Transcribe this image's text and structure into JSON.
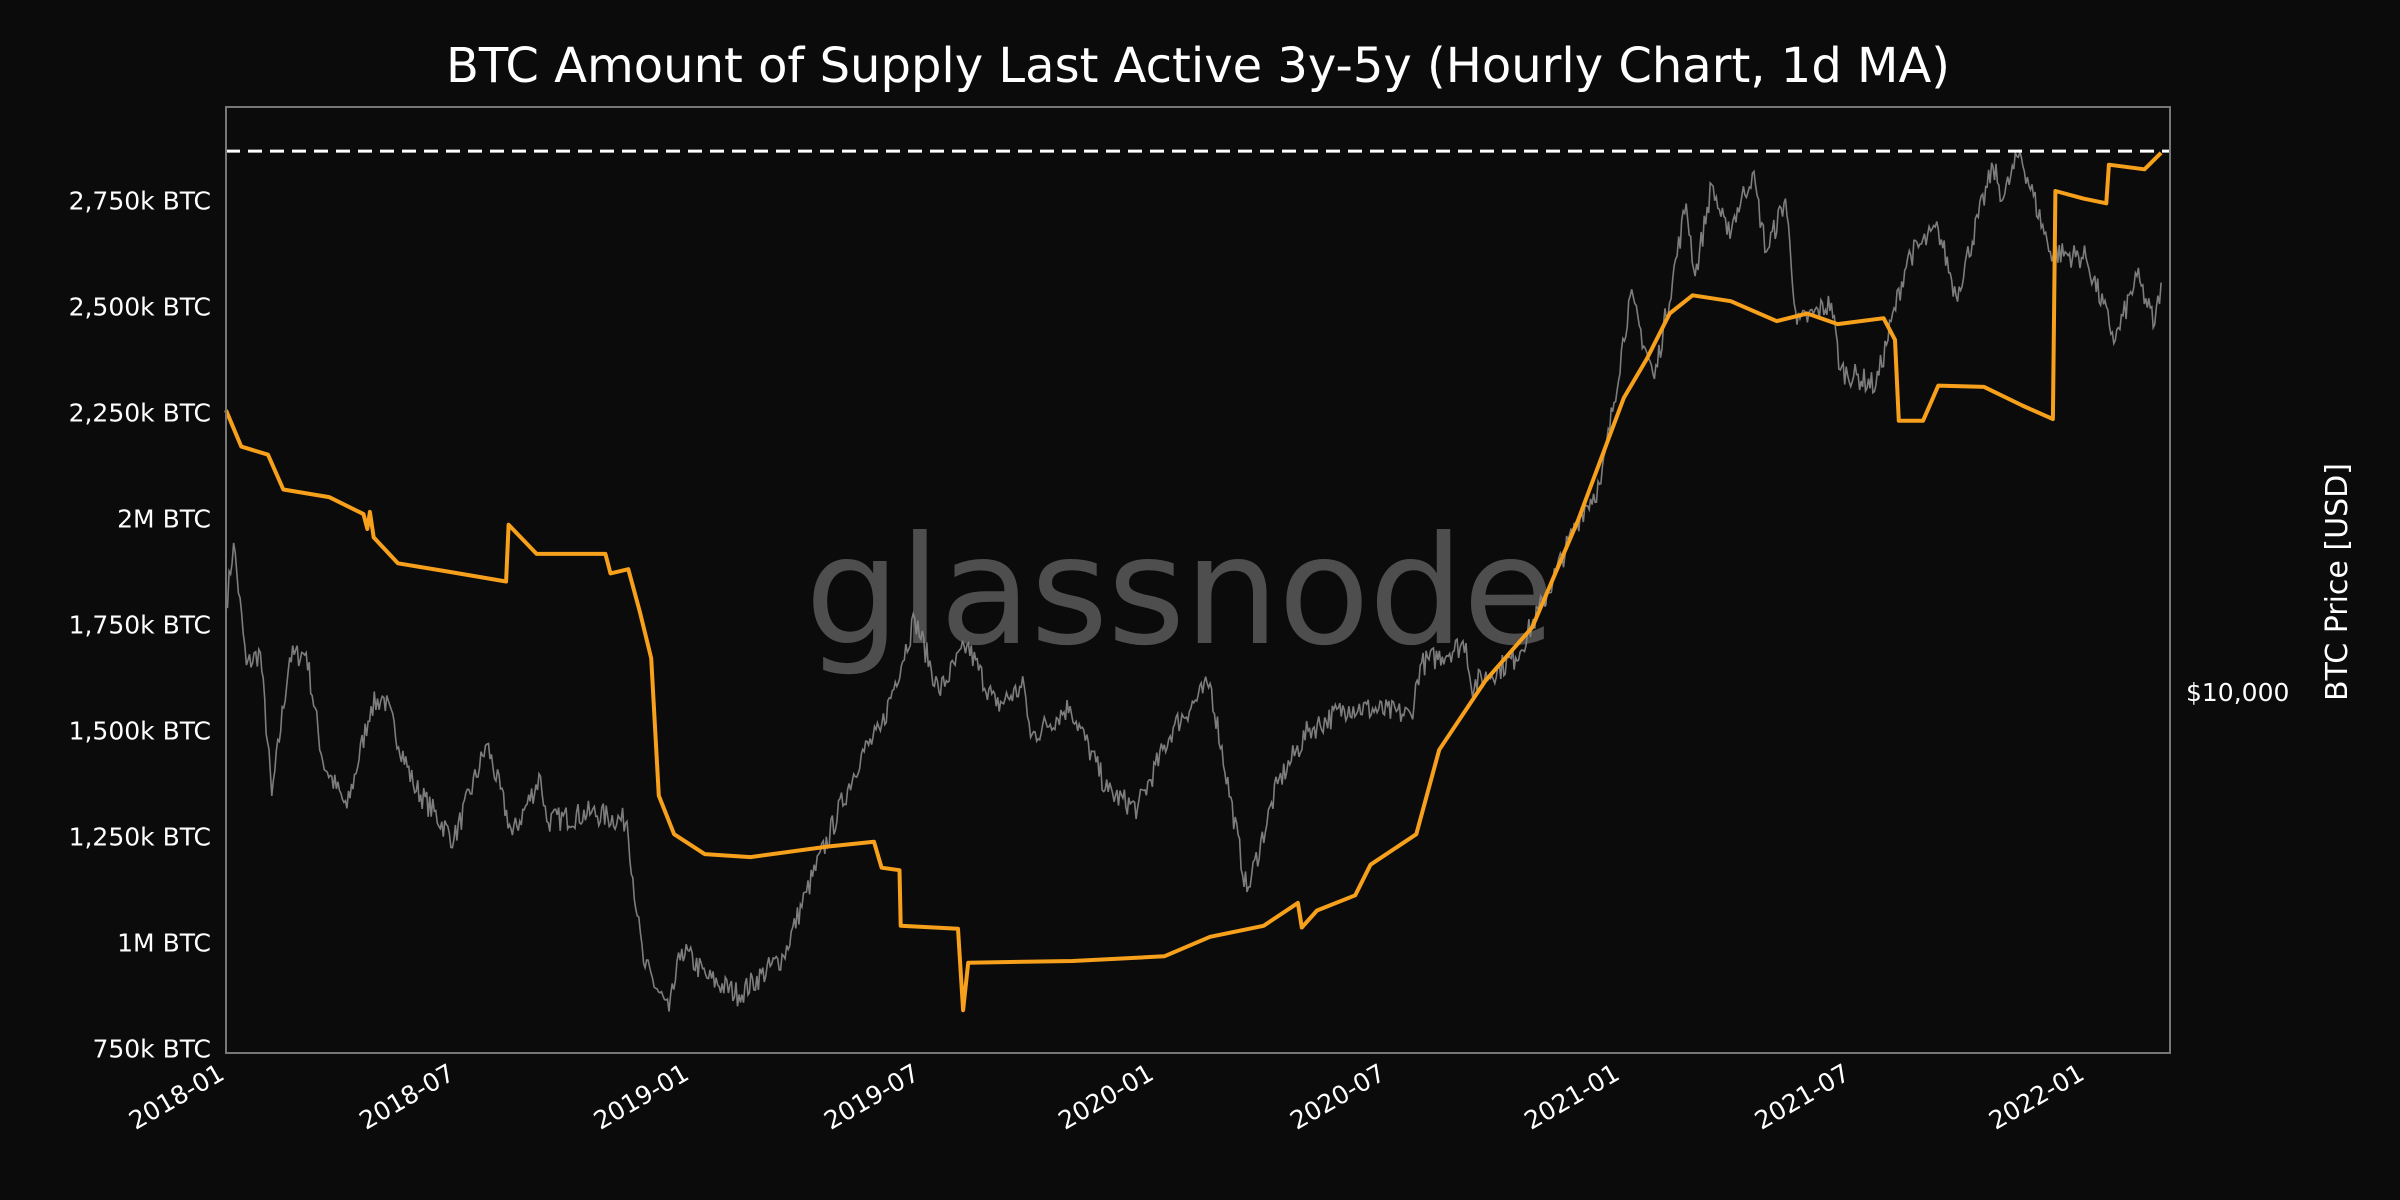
{
  "chart_data": {
    "type": "line",
    "title": "BTC Amount of Supply Last Active 3y-5y (Hourly Chart, 1d MA)",
    "watermark": "glassnode",
    "xlabel": "",
    "ylabel": "",
    "y2label": "BTC Price [USD]",
    "xlim": [
      "2018-01-01",
      "2022-03-08"
    ],
    "ylim": [
      739,
      2970
    ],
    "y2lim": [
      2760,
      80400
    ],
    "y2scale": "log",
    "grid": false,
    "background": "#0b0b0b",
    "x_ticks": [
      "2018-01",
      "2018-07",
      "2019-01",
      "2019-07",
      "2020-01",
      "2020-07",
      "2021-01",
      "2021-07",
      "2022-01"
    ],
    "y_ticks": [
      {
        "value": 750,
        "label": "750k BTC"
      },
      {
        "value": 1000,
        "label": "1M BTC"
      },
      {
        "value": 1250,
        "label": "1,250k BTC"
      },
      {
        "value": 1500,
        "label": "1,500k BTC"
      },
      {
        "value": 1750,
        "label": "1,750k BTC"
      },
      {
        "value": 2000,
        "label": "2M BTC"
      },
      {
        "value": 2250,
        "label": "2,250k BTC"
      },
      {
        "value": 2500,
        "label": "2,500k BTC"
      },
      {
        "value": 2750,
        "label": "2,750k BTC"
      }
    ],
    "y2_ticks": [
      {
        "value": 10000,
        "label": "$10,000"
      }
    ],
    "reference_line": {
      "value": 2866,
      "style": "dashed",
      "color": "#ffffff"
    },
    "series": [
      {
        "axis": "left",
        "unit": "k BTC",
        "color": "#f7a01c",
        "points": [
          [
            "2018-01-01",
            2255
          ],
          [
            "2018-01-13",
            2169
          ],
          [
            "2018-02-03",
            2150
          ],
          [
            "2018-02-15",
            2068
          ],
          [
            "2018-03-23",
            2050
          ],
          [
            "2018-04-19",
            2010
          ],
          [
            "2018-04-22",
            1975
          ],
          [
            "2018-04-24",
            2015
          ],
          [
            "2018-04-27",
            1955
          ],
          [
            "2018-05-16",
            1894
          ],
          [
            "2018-06-21",
            1876
          ],
          [
            "2018-08-09",
            1851
          ],
          [
            "2018-08-11",
            1985
          ],
          [
            "2018-09-02",
            1916
          ],
          [
            "2018-10-26",
            1916
          ],
          [
            "2018-10-30",
            1870
          ],
          [
            "2018-11-13",
            1880
          ],
          [
            "2018-11-22",
            1780
          ],
          [
            "2018-12-01",
            1670
          ],
          [
            "2018-12-07",
            1346
          ],
          [
            "2018-12-19",
            1255
          ],
          [
            "2019-01-12",
            1208
          ],
          [
            "2019-02-17",
            1201
          ],
          [
            "2019-04-19",
            1226
          ],
          [
            "2019-05-25",
            1237
          ],
          [
            "2019-05-31",
            1176
          ],
          [
            "2019-06-14",
            1170
          ],
          [
            "2019-06-15",
            1039
          ],
          [
            "2019-07-30",
            1032
          ],
          [
            "2019-08-03",
            840
          ],
          [
            "2019-08-07",
            952
          ],
          [
            "2019-10-28",
            956
          ],
          [
            "2020-01-08",
            967
          ],
          [
            "2020-02-13",
            1013
          ],
          [
            "2020-03-26",
            1039
          ],
          [
            "2020-04-22",
            1093
          ],
          [
            "2020-04-25",
            1035
          ],
          [
            "2020-05-07",
            1075
          ],
          [
            "2020-06-06",
            1111
          ],
          [
            "2020-06-18",
            1183
          ],
          [
            "2020-07-24",
            1255
          ],
          [
            "2020-08-11",
            1454
          ],
          [
            "2020-09-16",
            1616
          ],
          [
            "2020-10-23",
            1743
          ],
          [
            "2020-11-28",
            1995
          ],
          [
            "2021-01-03",
            2284
          ],
          [
            "2021-01-21",
            2376
          ],
          [
            "2021-02-08",
            2483
          ],
          [
            "2021-02-26",
            2526
          ],
          [
            "2021-03-28",
            2512
          ],
          [
            "2021-05-03",
            2465
          ],
          [
            "2021-05-27",
            2483
          ],
          [
            "2021-06-20",
            2458
          ],
          [
            "2021-07-26",
            2472
          ],
          [
            "2021-08-04",
            2421
          ],
          [
            "2021-08-07",
            2230
          ],
          [
            "2021-08-26",
            2230
          ],
          [
            "2021-09-07",
            2313
          ],
          [
            "2021-10-13",
            2310
          ],
          [
            "2021-11-12",
            2266
          ],
          [
            "2021-12-06",
            2234
          ],
          [
            "2021-12-08",
            2772
          ],
          [
            "2021-12-30",
            2754
          ],
          [
            "2022-01-17",
            2743
          ],
          [
            "2022-01-19",
            2834
          ],
          [
            "2022-02-16",
            2823
          ],
          [
            "2022-03-01",
            2862
          ]
        ]
      },
      {
        "axis": "right",
        "unit": "USD",
        "color": "#8a8a8a",
        "points": [
          [
            "2018-01-01",
            13500
          ],
          [
            "2018-01-07",
            17000
          ],
          [
            "2018-01-17",
            11000
          ],
          [
            "2018-01-28",
            11500
          ],
          [
            "2018-02-06",
            6900
          ],
          [
            "2018-02-20",
            11300
          ],
          [
            "2018-03-05",
            11500
          ],
          [
            "2018-03-18",
            7800
          ],
          [
            "2018-04-06",
            6600
          ],
          [
            "2018-04-25",
            9500
          ],
          [
            "2018-05-05",
            9800
          ],
          [
            "2018-05-28",
            7200
          ],
          [
            "2018-06-29",
            5900
          ],
          [
            "2018-07-25",
            8300
          ],
          [
            "2018-08-14",
            6000
          ],
          [
            "2018-09-05",
            7400
          ],
          [
            "2018-09-10",
            6300
          ],
          [
            "2018-10-15",
            6500
          ],
          [
            "2018-11-12",
            6300
          ],
          [
            "2018-11-20",
            4500
          ],
          [
            "2018-11-25",
            3800
          ],
          [
            "2018-12-15",
            3200
          ],
          [
            "2018-12-25",
            4000
          ],
          [
            "2019-01-15",
            3600
          ],
          [
            "2019-02-08",
            3400
          ],
          [
            "2019-03-15",
            3900
          ],
          [
            "2019-04-02",
            4900
          ],
          [
            "2019-05-15",
            8000
          ],
          [
            "2019-05-30",
            8700
          ],
          [
            "2019-06-26",
            13000
          ],
          [
            "2019-07-15",
            10000
          ],
          [
            "2019-08-06",
            11800
          ],
          [
            "2019-08-29",
            9500
          ],
          [
            "2019-09-20",
            10200
          ],
          [
            "2019-09-25",
            8500
          ],
          [
            "2019-10-26",
            9500
          ],
          [
            "2019-11-25",
            7000
          ],
          [
            "2019-12-18",
            6600
          ],
          [
            "2020-01-15",
            8800
          ],
          [
            "2020-02-13",
            10300
          ],
          [
            "2020-03-13",
            4900
          ],
          [
            "2020-04-06",
            7200
          ],
          [
            "2020-04-30",
            8700
          ],
          [
            "2020-06-01",
            9500
          ],
          [
            "2020-07-20",
            9200
          ],
          [
            "2020-07-27",
            11000
          ],
          [
            "2020-09-01",
            11900
          ],
          [
            "2020-09-05",
            10200
          ],
          [
            "2020-10-10",
            11300
          ],
          [
            "2020-11-01",
            13800
          ],
          [
            "2020-12-01",
            19000
          ],
          [
            "2020-12-16",
            21000
          ],
          [
            "2021-01-08",
            41000
          ],
          [
            "2021-01-27",
            30500
          ],
          [
            "2021-02-21",
            57000
          ],
          [
            "2021-02-28",
            44000
          ],
          [
            "2021-03-13",
            61000
          ],
          [
            "2021-03-25",
            51000
          ],
          [
            "2021-04-14",
            63500
          ],
          [
            "2021-04-25",
            48000
          ],
          [
            "2021-05-10",
            58000
          ],
          [
            "2021-05-19",
            37000
          ],
          [
            "2021-06-15",
            40000
          ],
          [
            "2021-06-22",
            31500
          ],
          [
            "2021-07-20",
            29800
          ],
          [
            "2021-08-14",
            47000
          ],
          [
            "2021-09-07",
            52000
          ],
          [
            "2021-09-21",
            41000
          ],
          [
            "2021-10-20",
            65000
          ],
          [
            "2021-10-28",
            58000
          ],
          [
            "2021-11-10",
            68500
          ],
          [
            "2021-12-04",
            48000
          ],
          [
            "2022-01-01",
            47000
          ],
          [
            "2022-01-24",
            35000
          ],
          [
            "2022-02-10",
            44000
          ],
          [
            "2022-02-24",
            37000
          ],
          [
            "2022-03-01",
            43000
          ]
        ]
      }
    ]
  }
}
